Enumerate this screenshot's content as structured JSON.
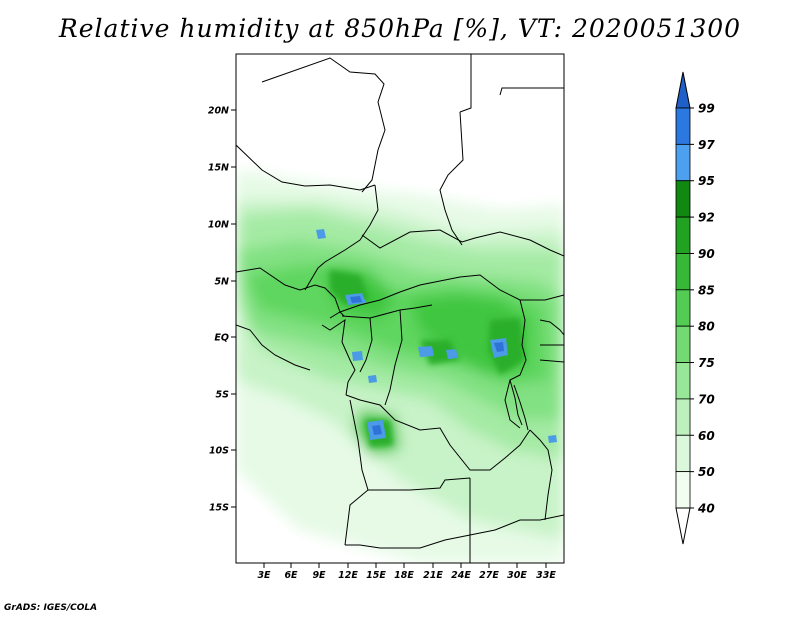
{
  "title": "Relative humidity at 850hPa [%], VT: 2020051300",
  "footer": "GrADS: IGES/COLA",
  "map": {
    "lat_labels": [
      "20N",
      "15N",
      "10N",
      "5N",
      "EQ",
      "5S",
      "10S",
      "15S"
    ],
    "lon_labels": [
      "3E",
      "6E",
      "9E",
      "12E",
      "15E",
      "18E",
      "21E",
      "24E",
      "27E",
      "30E",
      "33E"
    ],
    "field_colors": {
      "c40": "#ffffff",
      "c50": "#e6fae6",
      "c60": "#c8f3c8",
      "c70": "#a4eaa4",
      "c75": "#82e182",
      "c80": "#5fd65f",
      "c85": "#3fc63f",
      "c90": "#2caf2c",
      "c95": "#4b9be6",
      "c97": "#2f73d8"
    }
  },
  "colorbar": {
    "levels": [
      "99",
      "97",
      "95",
      "92",
      "90",
      "85",
      "80",
      "75",
      "70",
      "60",
      "50",
      "40"
    ],
    "bins": [
      {
        "color": "#1f5fc7"
      },
      {
        "color": "#2b78e0"
      },
      {
        "color": "#4d9ff0"
      },
      {
        "color": "#118811"
      },
      {
        "color": "#21a321"
      },
      {
        "color": "#37b937"
      },
      {
        "color": "#52cc52"
      },
      {
        "color": "#73da73"
      },
      {
        "color": "#98e698"
      },
      {
        "color": "#bdf0bd"
      },
      {
        "color": "#dcf8dc"
      },
      {
        "color": "#f2fdf2"
      },
      {
        "color": "#ffffff"
      }
    ]
  }
}
